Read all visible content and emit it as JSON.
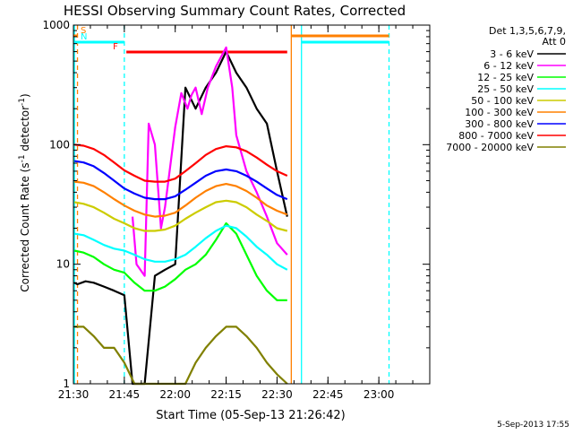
{
  "chart_data": {
    "type": "line",
    "title": "HESSI Observing Summary Count Rates, Corrected",
    "xlabel": "Start Time (05-Sep-13 21:26:42)",
    "ylabel_main": "Corrected Count Rate (s",
    "ylabel_sup1": "-1",
    "ylabel_mid": " detector",
    "ylabel_sup2": "-1",
    "ylabel_end": ")",
    "ylog": true,
    "ylim": [
      1,
      1000
    ],
    "xlim_minutes": [
      21.5,
      23.25
    ],
    "x_ticks": [
      {
        "t": 21.5,
        "label": "21:30"
      },
      {
        "t": 21.75,
        "label": "21:45"
      },
      {
        "t": 22.0,
        "label": "22:00"
      },
      {
        "t": 22.25,
        "label": "22:15"
      },
      {
        "t": 22.5,
        "label": "22:30"
      },
      {
        "t": 22.75,
        "label": "22:45"
      },
      {
        "t": 23.0,
        "label": "23:00"
      }
    ],
    "y_ticks": [
      {
        "v": 1,
        "label": "1"
      },
      {
        "v": 10,
        "label": "10"
      },
      {
        "v": 100,
        "label": "100"
      },
      {
        "v": 1000,
        "label": "1000"
      }
    ],
    "legend_header_1": "Det 1,3,5,6,7,9,",
    "legend_header_2": "Att 0",
    "legend_placement": "right",
    "series": [
      {
        "name": "3 - 6 keV",
        "color": "#000000",
        "x": [
          21.505,
          21.52,
          21.56,
          21.6,
          21.65,
          21.7,
          21.75,
          21.79,
          21.85,
          21.9,
          21.95,
          22.0,
          22.05,
          22.1,
          22.15,
          22.2,
          22.25,
          22.3,
          22.35,
          22.4,
          22.45,
          22.5,
          22.55
        ],
        "y": [
          7.0,
          6.8,
          7.2,
          7.0,
          6.5,
          6.0,
          5.5,
          1.0,
          1.0,
          8.0,
          9.0,
          10.0,
          300,
          200,
          300,
          400,
          600,
          400,
          300,
          200,
          150,
          60,
          25
        ]
      },
      {
        "name": "6 - 12 keV",
        "color": "#ff00ff",
        "x": [
          21.79,
          21.81,
          21.85,
          21.87,
          21.9,
          21.93,
          21.95,
          22.0,
          22.03,
          22.06,
          22.08,
          22.1,
          22.13,
          22.16,
          22.2,
          22.25,
          22.28,
          22.3,
          22.35,
          22.4,
          22.45,
          22.5,
          22.55
        ],
        "y": [
          25,
          10,
          8,
          150,
          100,
          20,
          30,
          140,
          270,
          200,
          260,
          300,
          180,
          300,
          450,
          650,
          300,
          120,
          60,
          40,
          25,
          15,
          12
        ]
      },
      {
        "name": "12 - 25 keV",
        "color": "#00ff00",
        "x": [
          21.505,
          21.55,
          21.6,
          21.65,
          21.7,
          21.75,
          21.8,
          21.85,
          21.9,
          21.95,
          22.0,
          22.05,
          22.1,
          22.15,
          22.2,
          22.25,
          22.3,
          22.35,
          22.4,
          22.45,
          22.5,
          22.55
        ],
        "y": [
          13,
          12.5,
          11.5,
          10,
          9,
          8.5,
          7,
          6,
          6,
          6.5,
          7.5,
          9,
          10,
          12,
          16,
          22,
          18,
          12,
          8,
          6,
          5,
          5
        ]
      },
      {
        "name": "25 - 50 keV",
        "color": "#00ffff",
        "x": [
          21.505,
          21.55,
          21.6,
          21.65,
          21.7,
          21.75,
          21.8,
          21.85,
          21.9,
          21.95,
          22.0,
          22.05,
          22.1,
          22.15,
          22.2,
          22.25,
          22.3,
          22.35,
          22.4,
          22.45,
          22.5,
          22.55
        ],
        "y": [
          18,
          17.5,
          16,
          14.5,
          13.5,
          13,
          12,
          11,
          10.5,
          10.5,
          11,
          12,
          14,
          16.5,
          19,
          21,
          20,
          17,
          14,
          12,
          10,
          9
        ]
      },
      {
        "name": "50 - 100 keV",
        "color": "#cccc00",
        "x": [
          21.505,
          21.55,
          21.6,
          21.65,
          21.7,
          21.75,
          21.8,
          21.85,
          21.9,
          21.95,
          22.0,
          22.05,
          22.1,
          22.15,
          22.2,
          22.25,
          22.3,
          22.35,
          22.4,
          22.45,
          22.5,
          22.55
        ],
        "y": [
          33,
          32,
          30,
          27,
          24,
          22,
          20,
          19,
          19,
          19.5,
          21,
          24,
          27,
          30,
          33,
          34,
          33,
          30,
          26,
          23,
          20,
          19
        ]
      },
      {
        "name": "100 - 300 keV",
        "color": "#ff8000",
        "x": [
          21.505,
          21.55,
          21.6,
          21.65,
          21.7,
          21.75,
          21.8,
          21.85,
          21.9,
          21.95,
          22.0,
          22.05,
          22.1,
          22.15,
          22.2,
          22.25,
          22.3,
          22.35,
          22.4,
          22.45,
          22.5,
          22.55
        ],
        "y": [
          49,
          48,
          45,
          40,
          35,
          31,
          28,
          26,
          25,
          25.5,
          27,
          31,
          36,
          41,
          45,
          47,
          45,
          41,
          36,
          31,
          28,
          26
        ]
      },
      {
        "name": "300 - 800 keV",
        "color": "#0000ff",
        "x": [
          21.505,
          21.55,
          21.6,
          21.65,
          21.7,
          21.75,
          21.8,
          21.85,
          21.9,
          21.95,
          22.0,
          22.05,
          22.1,
          22.15,
          22.2,
          22.25,
          22.3,
          22.35,
          22.4,
          22.45,
          22.5,
          22.55
        ],
        "y": [
          73,
          71,
          66,
          58,
          50,
          43,
          39,
          36,
          35,
          35,
          37,
          42,
          48,
          55,
          60,
          62,
          60,
          55,
          49,
          43,
          38,
          35
        ]
      },
      {
        "name": "800 - 7000 keV",
        "color": "#ff0000",
        "x": [
          21.505,
          21.55,
          21.6,
          21.65,
          21.7,
          21.75,
          21.8,
          21.85,
          21.9,
          21.95,
          22.0,
          22.05,
          22.1,
          22.15,
          22.2,
          22.25,
          22.3,
          22.35,
          22.4,
          22.45,
          22.5,
          22.55
        ],
        "y": [
          100,
          98,
          92,
          82,
          71,
          61,
          55,
          50,
          49,
          49,
          52,
          60,
          70,
          82,
          92,
          97,
          95,
          88,
          78,
          68,
          60,
          55
        ]
      },
      {
        "name": "7000 - 20000 keV",
        "color": "#808000",
        "x": [
          21.505,
          21.55,
          21.6,
          21.65,
          21.7,
          21.75,
          21.8,
          21.85,
          21.9,
          21.95,
          22.0,
          22.05,
          22.1,
          22.15,
          22.2,
          22.25,
          22.3,
          22.35,
          22.4,
          22.45,
          22.5,
          22.55
        ],
        "y": [
          3.0,
          3.0,
          2.5,
          2.0,
          2.0,
          1.5,
          1.0,
          1.0,
          1.0,
          1.0,
          1.0,
          1.0,
          1.5,
          2.0,
          2.5,
          3.0,
          3.0,
          2.5,
          2.0,
          1.5,
          1.2,
          1.0
        ]
      }
    ],
    "flag_bars": [
      {
        "label": "S",
        "color": "#ff8000",
        "x0": 21.5,
        "x1": 21.52,
        "level": 1
      },
      {
        "label": "N",
        "color": "#00ffff",
        "x0": 21.5,
        "x1": 21.75,
        "level": 2
      },
      {
        "label": "F",
        "color": "#ff0000",
        "x0": 21.76,
        "x1": 22.55,
        "level": 3
      },
      {
        "color": "#ff8000",
        "x0": 22.57,
        "x1": 23.05,
        "level": 1
      },
      {
        "color": "#00ffff",
        "x0": 22.62,
        "x1": 23.05,
        "level": 2
      }
    ],
    "vlines": [
      {
        "t": 21.52,
        "color": "#ff8000",
        "dashed": true
      },
      {
        "t": 21.505,
        "color": "#00ffff",
        "dashed": false
      },
      {
        "t": 21.75,
        "color": "#00ffff",
        "dashed": true
      },
      {
        "t": 22.57,
        "color": "#ff8000",
        "dashed": false
      },
      {
        "t": 22.62,
        "color": "#00ffff",
        "dashed": false
      },
      {
        "t": 23.05,
        "color": "#00ffff",
        "dashed": true
      }
    ],
    "footer_date": "5-Sep-2013 17:55"
  }
}
